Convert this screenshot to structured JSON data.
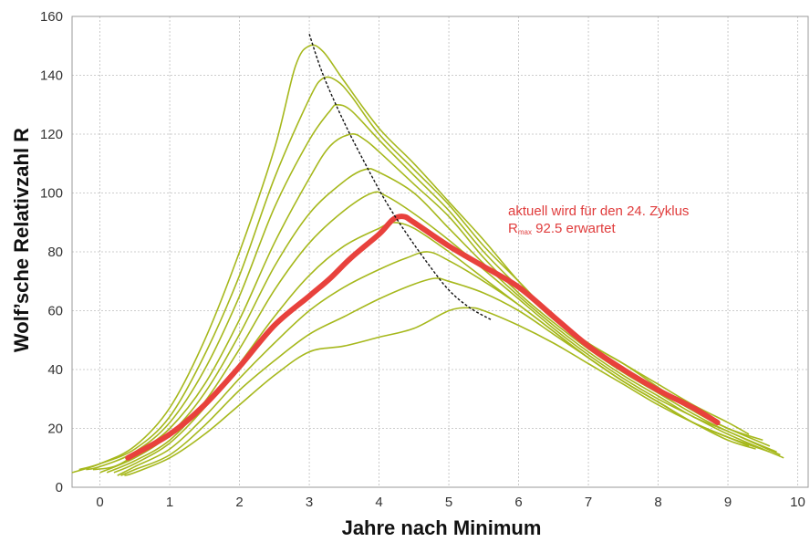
{
  "chart_data": {
    "type": "line",
    "xlabel": "Jahre nach Minimum",
    "ylabel": "Wolf’sche Relativzahl R",
    "xlim": [
      -0.4,
      10.15
    ],
    "ylim": [
      0,
      160
    ],
    "x_ticks": [
      0,
      1,
      2,
      3,
      4,
      5,
      6,
      7,
      8,
      9,
      10
    ],
    "y_ticks": [
      0,
      20,
      40,
      60,
      80,
      100,
      120,
      140,
      160
    ],
    "grid": true,
    "colors": {
      "cycles": "#a6b81c",
      "predicted": "#e8413c",
      "max_line": "#111111",
      "grid": "#bdbdbd",
      "annotation": "#e03c3c"
    },
    "annotation": {
      "line1": "aktuell wird für den 24. Zyklus",
      "line2_main": "R",
      "line2_sub": "max",
      "line2_rest": " 92.5 erwartet"
    },
    "series": [
      {
        "points": [
          [
            -0.4,
            5
          ],
          [
            0,
            8
          ],
          [
            0.5,
            14
          ],
          [
            1,
            27
          ],
          [
            1.5,
            50
          ],
          [
            2,
            80
          ],
          [
            2.5,
            115
          ],
          [
            2.8,
            143
          ],
          [
            3,
            150
          ],
          [
            3.2,
            148
          ],
          [
            3.5,
            138
          ],
          [
            4,
            122
          ],
          [
            4.5,
            110
          ],
          [
            5,
            97
          ],
          [
            5.5,
            84
          ],
          [
            6,
            70
          ],
          [
            6.5,
            58
          ],
          [
            7,
            49
          ],
          [
            7.5,
            42
          ],
          [
            8,
            35
          ],
          [
            8.5,
            28
          ],
          [
            9,
            22
          ],
          [
            9.3,
            18
          ]
        ]
      },
      {
        "points": [
          [
            -0.3,
            6
          ],
          [
            0,
            8
          ],
          [
            0.5,
            13
          ],
          [
            1,
            24
          ],
          [
            1.5,
            45
          ],
          [
            2,
            72
          ],
          [
            2.5,
            105
          ],
          [
            3,
            132
          ],
          [
            3.2,
            139
          ],
          [
            3.4,
            138
          ],
          [
            3.6,
            133
          ],
          [
            4,
            120
          ],
          [
            4.5,
            108
          ],
          [
            5,
            96
          ],
          [
            5.5,
            82
          ],
          [
            6,
            70
          ],
          [
            6.5,
            58
          ],
          [
            7,
            49
          ],
          [
            7.5,
            42
          ],
          [
            8,
            34
          ],
          [
            8.5,
            26
          ],
          [
            9,
            20
          ],
          [
            9.5,
            16
          ]
        ]
      },
      {
        "points": [
          [
            -0.2,
            6
          ],
          [
            0,
            7
          ],
          [
            0.5,
            12
          ],
          [
            1,
            22
          ],
          [
            1.5,
            40
          ],
          [
            2,
            65
          ],
          [
            2.5,
            95
          ],
          [
            3,
            118
          ],
          [
            3.3,
            128
          ],
          [
            3.4,
            130
          ],
          [
            3.6,
            128
          ],
          [
            4,
            118
          ],
          [
            4.5,
            106
          ],
          [
            5,
            94
          ],
          [
            5.5,
            80
          ],
          [
            6,
            68
          ],
          [
            6.5,
            57
          ],
          [
            7,
            48
          ],
          [
            7.5,
            40
          ],
          [
            8,
            33
          ],
          [
            8.5,
            26
          ],
          [
            9,
            20
          ],
          [
            9.6,
            14
          ]
        ]
      },
      {
        "points": [
          [
            -0.1,
            6
          ],
          [
            0.2,
            7
          ],
          [
            0.5,
            11
          ],
          [
            1,
            20
          ],
          [
            1.5,
            35
          ],
          [
            2,
            57
          ],
          [
            2.5,
            83
          ],
          [
            3,
            105
          ],
          [
            3.3,
            116
          ],
          [
            3.6,
            120
          ],
          [
            3.8,
            118
          ],
          [
            4,
            114
          ],
          [
            4.5,
            103
          ],
          [
            5,
            92
          ],
          [
            5.5,
            78
          ],
          [
            6,
            66
          ],
          [
            6.5,
            56
          ],
          [
            7,
            47
          ],
          [
            7.5,
            39
          ],
          [
            8,
            32
          ],
          [
            8.5,
            25
          ],
          [
            9,
            19
          ],
          [
            9.7,
            12
          ]
        ]
      },
      {
        "points": [
          [
            0,
            5
          ],
          [
            0.5,
            10
          ],
          [
            1,
            18
          ],
          [
            1.5,
            32
          ],
          [
            2,
            52
          ],
          [
            2.5,
            75
          ],
          [
            3,
            93
          ],
          [
            3.5,
            104
          ],
          [
            3.8,
            108
          ],
          [
            4,
            107
          ],
          [
            4.5,
            100
          ],
          [
            5,
            88
          ],
          [
            5.5,
            76
          ],
          [
            6,
            65
          ],
          [
            6.5,
            55
          ],
          [
            7,
            46
          ],
          [
            7.5,
            38
          ],
          [
            8,
            31
          ],
          [
            8.5,
            24
          ],
          [
            9,
            19
          ],
          [
            9.75,
            11
          ]
        ]
      },
      {
        "points": [
          [
            0.1,
            5
          ],
          [
            0.5,
            9
          ],
          [
            1,
            16
          ],
          [
            1.5,
            29
          ],
          [
            2,
            47
          ],
          [
            2.5,
            67
          ],
          [
            3,
            83
          ],
          [
            3.5,
            94
          ],
          [
            3.9,
            100
          ],
          [
            4.1,
            99
          ],
          [
            4.5,
            93
          ],
          [
            5,
            84
          ],
          [
            5.5,
            74
          ],
          [
            6,
            64
          ],
          [
            6.5,
            54
          ],
          [
            7,
            45
          ],
          [
            7.5,
            37
          ],
          [
            8,
            30
          ],
          [
            8.5,
            24
          ],
          [
            9,
            18
          ],
          [
            9.8,
            10
          ]
        ]
      },
      {
        "points": [
          [
            0.2,
            5
          ],
          [
            0.5,
            8
          ],
          [
            1,
            15
          ],
          [
            1.5,
            27
          ],
          [
            2,
            42
          ],
          [
            2.5,
            58
          ],
          [
            3,
            72
          ],
          [
            3.5,
            82
          ],
          [
            4,
            88
          ],
          [
            4.2,
            90
          ],
          [
            4.5,
            88
          ],
          [
            5,
            80
          ],
          [
            5.5,
            71
          ],
          [
            6,
            62
          ],
          [
            6.5,
            53
          ],
          [
            7,
            44
          ],
          [
            7.5,
            36
          ],
          [
            8,
            29
          ],
          [
            8.5,
            22
          ],
          [
            9,
            17
          ],
          [
            9.6,
            12
          ]
        ]
      },
      {
        "points": [
          [
            0.25,
            4
          ],
          [
            0.5,
            7
          ],
          [
            1,
            13
          ],
          [
            1.5,
            24
          ],
          [
            2,
            37
          ],
          [
            2.5,
            49
          ],
          [
            3,
            60
          ],
          [
            3.5,
            68
          ],
          [
            4,
            74
          ],
          [
            4.4,
            78
          ],
          [
            4.7,
            80
          ],
          [
            5,
            77
          ],
          [
            5.5,
            70
          ],
          [
            6,
            62
          ],
          [
            6.5,
            53
          ],
          [
            7,
            44
          ],
          [
            7.5,
            36
          ],
          [
            8,
            29
          ],
          [
            8.5,
            22
          ],
          [
            9,
            17
          ],
          [
            9.5,
            13
          ]
        ]
      },
      {
        "points": [
          [
            0.3,
            4
          ],
          [
            0.5,
            6
          ],
          [
            1,
            11
          ],
          [
            1.5,
            21
          ],
          [
            2,
            33
          ],
          [
            2.5,
            43
          ],
          [
            3,
            52
          ],
          [
            3.5,
            58
          ],
          [
            4,
            64
          ],
          [
            4.5,
            69
          ],
          [
            4.8,
            71
          ],
          [
            5,
            70
          ],
          [
            5.5,
            66
          ],
          [
            6,
            60
          ],
          [
            6.5,
            52
          ],
          [
            7,
            44
          ],
          [
            7.5,
            36
          ],
          [
            8,
            29
          ],
          [
            8.5,
            22
          ],
          [
            9,
            16
          ],
          [
            9.4,
            13
          ]
        ]
      },
      {
        "points": [
          [
            0.35,
            4
          ],
          [
            0.5,
            5
          ],
          [
            1,
            10
          ],
          [
            1.5,
            18
          ],
          [
            2,
            28
          ],
          [
            2.5,
            38
          ],
          [
            3,
            46
          ],
          [
            3.5,
            48
          ],
          [
            4,
            51
          ],
          [
            4.5,
            54
          ],
          [
            5,
            60
          ],
          [
            5.3,
            61
          ],
          [
            5.5,
            60
          ],
          [
            6,
            55
          ],
          [
            6.5,
            49
          ],
          [
            7,
            42
          ],
          [
            7.5,
            35
          ],
          [
            8,
            28
          ],
          [
            8.5,
            22
          ],
          [
            9,
            17
          ],
          [
            9.3,
            14
          ]
        ]
      }
    ],
    "predicted": {
      "points": [
        [
          0.4,
          10
        ],
        [
          1,
          18
        ],
        [
          1.5,
          28
        ],
        [
          2,
          41
        ],
        [
          2.5,
          55
        ],
        [
          3,
          65
        ],
        [
          3.3,
          71
        ],
        [
          3.6,
          78
        ],
        [
          4,
          86
        ],
        [
          4.2,
          91
        ],
        [
          4.35,
          92
        ],
        [
          4.5,
          90
        ],
        [
          5,
          82
        ],
        [
          5.5,
          75
        ],
        [
          6,
          68
        ],
        [
          6.5,
          58
        ],
        [
          7,
          48
        ],
        [
          7.5,
          40
        ],
        [
          8,
          33
        ],
        [
          8.5,
          27
        ],
        [
          8.85,
          22
        ]
      ]
    },
    "max_line": {
      "points": [
        [
          3,
          154
        ],
        [
          3.2,
          140
        ],
        [
          3.5,
          124
        ],
        [
          3.8,
          110
        ],
        [
          4.1,
          97
        ],
        [
          4.4,
          86
        ],
        [
          4.7,
          76
        ],
        [
          5,
          67
        ],
        [
          5.3,
          61
        ],
        [
          5.6,
          57
        ]
      ]
    }
  }
}
